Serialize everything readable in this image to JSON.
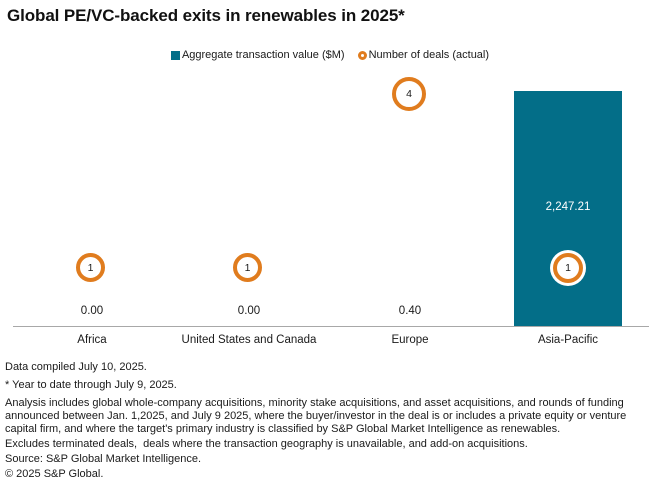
{
  "title": "Global PE/VC-backed exits in renewables in 2025*",
  "colors": {
    "bar_teal": "#036E88",
    "deals_orange": "#E07C1E",
    "axis_gray": "#A8A8A8",
    "bar_label_text": "#FFFFFF"
  },
  "legend": {
    "value_series": {
      "label": "Aggregate transaction value ($M)",
      "swatch": "teal-square-icon"
    },
    "deals_series": {
      "label": "Number of deals (actual)",
      "swatch": "orange-ring-icon"
    }
  },
  "chart_data": {
    "type": "bar",
    "categories": [
      "Africa",
      "United States and Canada",
      "Europe",
      "Asia-Pacific"
    ],
    "series": [
      {
        "name": "Aggregate transaction value ($M)",
        "type": "bar",
        "color": "#036E88",
        "values": [
          0.0,
          0.0,
          0.4,
          2247.21
        ],
        "value_labels": [
          "0.00",
          "0.00",
          "0.40",
          "2,247.21"
        ]
      },
      {
        "name": "Number of deals (actual)",
        "type": "point",
        "marker": "orange-ring-bubble",
        "color": "#E07C1E",
        "values": [
          1,
          1,
          4,
          1
        ]
      }
    ],
    "title": "Global PE/VC-backed exits in renewables in 2025*",
    "xlabel": "",
    "ylabel": "",
    "ylim": [
      0,
      2250
    ],
    "secondary_ylim": [
      0,
      4
    ],
    "grid": false,
    "legend_position": "top-center",
    "value_label_position": "inside bar when tall, above axis when zero"
  },
  "footnotes": {
    "compiled": "Data compiled July 10, 2025.",
    "ytd": "* Year to date through July 9, 2025.",
    "analysis": "Analysis includes global whole-company acquisitions, minority stake acquisitions, and asset acquisitions, and rounds of funding announced between Jan. 1,2025, and July 9 2025, where the buyer/investor in the deal is or includes a private equity or venture capital firm, and where the target's primary industry is classified by S&P Global Market Intelligence as renewables.",
    "excludes": "Excludes terminated deals,  deals where the transaction geography is unavailable, and add-on acquisitions.",
    "source": "Source: S&P Global Market Intelligence.",
    "copyright": "© 2025 S&P Global."
  }
}
